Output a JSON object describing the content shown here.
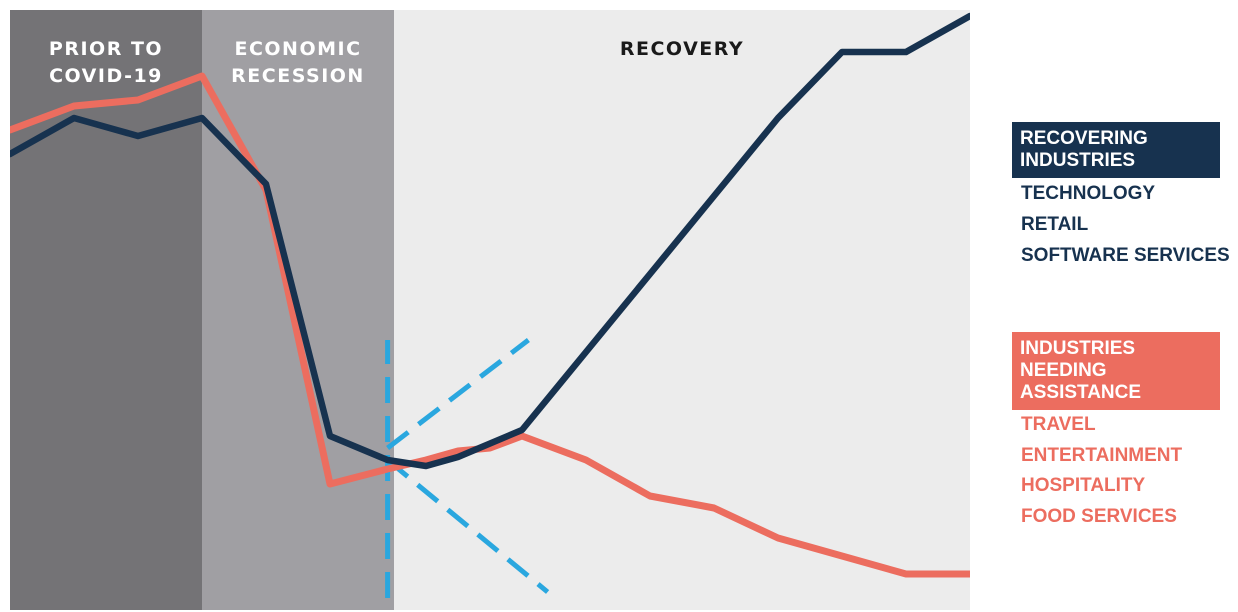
{
  "chart_data": {
    "type": "line",
    "title": "",
    "xlabel": "",
    "ylabel": "",
    "axes_visible": false,
    "grid": false,
    "phases": [
      {
        "label_lines": [
          "PRIOR TO",
          "COVID-19"
        ],
        "x_start": 0,
        "x_end": 3,
        "color": "#747376"
      },
      {
        "label_lines": [
          "ECONOMIC",
          "RECESSION"
        ],
        "x_start": 3,
        "x_end": 6,
        "color": "#a09fa3"
      },
      {
        "label_lines": [
          "RECOVERY"
        ],
        "x_start": 6,
        "x_end": 15,
        "color": "#ececec"
      }
    ],
    "x_range": [
      0,
      15
    ],
    "y_range": [
      0,
      100
    ],
    "series": [
      {
        "name": "INDUSTRIES NEEDING ASSISTANCE",
        "color": "#ec6d5f",
        "x": [
          0,
          1,
          2,
          3,
          4,
          5,
          5.9,
          6.5,
          7,
          7.5,
          8,
          9,
          10,
          11,
          12,
          13,
          14,
          15
        ],
        "y": [
          80,
          84,
          85,
          89,
          70,
          21,
          23.5,
          25,
          26.5,
          27,
          29,
          25,
          19,
          17,
          12,
          9,
          6,
          6
        ]
      },
      {
        "name": "RECOVERING INDUSTRIES",
        "color": "#17324f",
        "x": [
          0,
          1,
          2,
          3,
          4,
          5,
          5.9,
          6.5,
          7,
          8,
          9,
          10,
          11,
          12,
          13,
          14,
          15
        ],
        "y": [
          76,
          82,
          79,
          82,
          71,
          29,
          25,
          24,
          25.5,
          30,
          43,
          56,
          69,
          82,
          93,
          93,
          99
        ]
      }
    ],
    "annotations": [
      {
        "type": "dashed-vertical",
        "x": 5.9,
        "y_from": 2,
        "y_to": 45,
        "color": "#2aa7df"
      },
      {
        "type": "dashed-diagonal",
        "x_from": 5.9,
        "y_from": 27,
        "x_to": 8.1,
        "y_to": 45,
        "color": "#2aa7df"
      },
      {
        "type": "dashed-diagonal",
        "x_from": 5.9,
        "y_from": 25,
        "x_to": 8.4,
        "y_to": 3,
        "color": "#2aa7df"
      }
    ]
  },
  "legend": {
    "recovering": {
      "heading": [
        "RECOVERING",
        "INDUSTRIES"
      ],
      "items": [
        "TECHNOLOGY",
        "RETAIL",
        "SOFTWARE SERVICES"
      ],
      "color": "#17324f"
    },
    "assistance": {
      "heading": [
        "INDUSTRIES NEEDING",
        "ASSISTANCE"
      ],
      "items": [
        "TRAVEL",
        "ENTERTAINMENT",
        "HOSPITALITY",
        "FOOD SERVICES"
      ],
      "color": "#ec6d5f"
    }
  }
}
